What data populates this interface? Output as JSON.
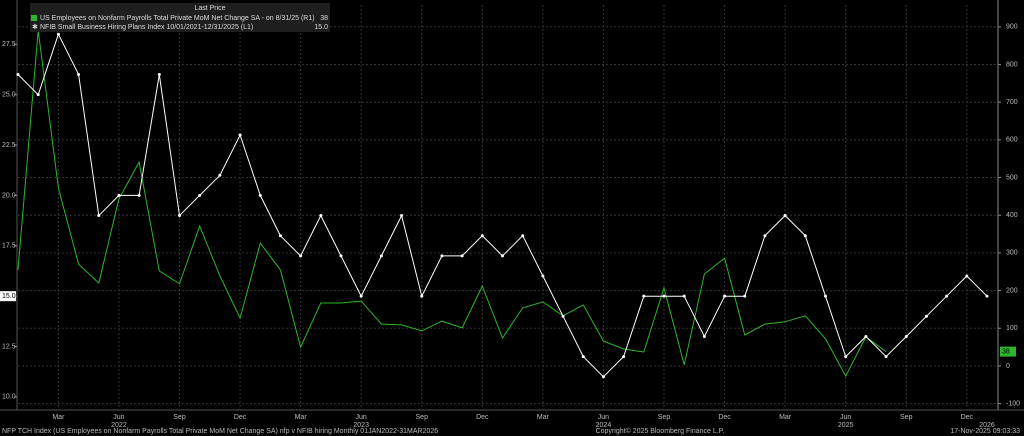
{
  "chart_data": {
    "type": "line",
    "legend_header": "Last Price",
    "categories": [
      null,
      null,
      "Mar",
      null,
      null,
      "Jun",
      null,
      null,
      "Sep",
      null,
      null,
      "Dec",
      null,
      null,
      "Mar",
      null,
      null,
      "Jun",
      null,
      null,
      "Sep",
      null,
      null,
      "Dec",
      null,
      null,
      "Mar",
      null,
      null,
      "Jun",
      null,
      null,
      "Sep",
      null,
      null,
      "Dec",
      null,
      null,
      "Mar",
      null,
      null,
      "Jun",
      null,
      null,
      "Sep",
      null,
      null,
      "Dec",
      null
    ],
    "year_labels": [
      null,
      null,
      null,
      null,
      null,
      "2022",
      null,
      null,
      null,
      null,
      null,
      null,
      null,
      null,
      null,
      null,
      null,
      "2023",
      null,
      null,
      null,
      null,
      null,
      null,
      null,
      null,
      null,
      null,
      null,
      "2024",
      null,
      null,
      null,
      null,
      null,
      null,
      null,
      null,
      null,
      null,
      null,
      "2025",
      null,
      null,
      null,
      null,
      null,
      null,
      "2026"
    ],
    "series": [
      {
        "name": "US Employees on Nonfarm Payrolls Total Private MoM Net Change SA -  on 8/31/25  (R1)",
        "color": "#2db52d",
        "axis": "y2",
        "last_value": 38,
        "values": [
          255,
          890,
          472,
          270,
          220,
          443,
          541,
          252,
          218,
          371,
          239,
          127,
          326,
          255,
          50,
          167,
          167,
          172,
          111,
          109,
          93,
          119,
          101,
          212,
          74,
          154,
          170,
          133,
          162,
          66,
          45,
          37,
          207,
          3,
          244,
          286,
          82,
          111,
          117,
          133,
          72,
          -27,
          77,
          38,
          null,
          null,
          null,
          null,
          null
        ]
      },
      {
        "name": "NFIB Small Business Hiring Plans Index 10/01/2021-12/31/2025  (L1)",
        "color": "#ffffff",
        "last_value": {
          "value": 15,
          "label": "15.0"
        },
        "values": [
          26,
          25,
          28,
          26,
          19,
          20,
          20,
          26,
          19,
          20,
          21,
          23,
          20,
          18,
          17,
          19,
          17,
          15,
          17,
          19,
          15,
          17,
          17,
          18,
          17,
          18,
          16,
          14,
          12,
          11,
          12,
          15,
          15,
          15,
          13,
          15,
          15,
          18,
          19,
          18,
          15,
          12,
          13,
          12,
          13,
          14,
          15,
          16,
          15
        ]
      }
    ],
    "ylim": [
      9.35,
      29.45
    ],
    "yticks": [
      {
        "value": 10,
        "label": "10.0"
      },
      12.5,
      {
        "value": 15,
        "label": "15.0"
      },
      17.5,
      {
        "value": 20,
        "label": "20.0"
      },
      22.5,
      {
        "value": 25,
        "label": "25.0"
      },
      27.5
    ],
    "y2lim": [
      -117,
      958
    ],
    "y2ticks": [
      -100,
      0,
      100,
      200,
      300,
      400,
      500,
      600,
      700,
      800,
      900
    ],
    "grid": true,
    "footer_left": "NFP TCH Index (US Employees on Nonfarm Payrolls Total Private MoM Net Change SA) nfp v NFIB hiring Monthly 01JAN2022-31MAR2026",
    "footer_center": "Copyright© 2025 Bloomberg Finance L.P.",
    "footer_right": "17-Nov-2025 09:03:33"
  }
}
